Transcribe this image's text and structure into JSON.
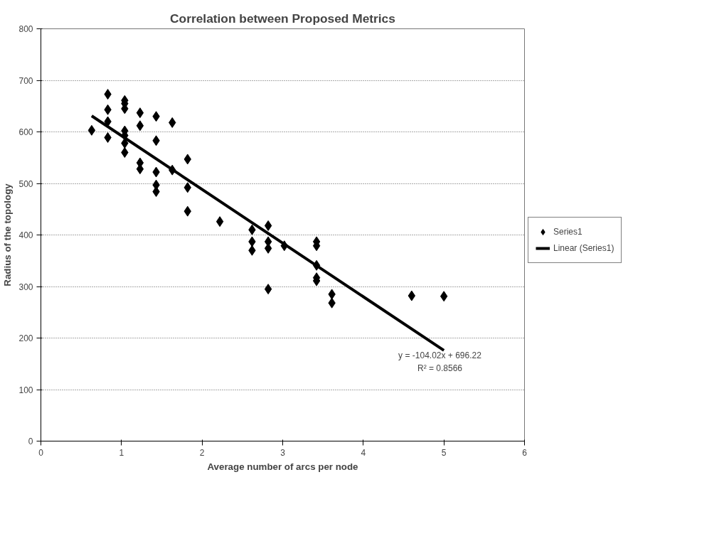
{
  "chart_data": {
    "type": "scatter",
    "title": "Correlation between Proposed Metrics",
    "xlabel": "Average number of arcs per node",
    "ylabel": "Radius of the topology",
    "xlim": [
      0,
      6
    ],
    "ylim": [
      0,
      800
    ],
    "xticks": [
      0,
      1,
      2,
      3,
      4,
      5,
      6
    ],
    "yticks": [
      0,
      100,
      200,
      300,
      400,
      500,
      600,
      700,
      800
    ],
    "grid": "y",
    "legend": "right",
    "series": [
      {
        "name": "Series1",
        "color": "#000000",
        "marker": "diamond",
        "x": [
          0.63,
          0.83,
          0.83,
          0.83,
          0.83,
          1.04,
          1.04,
          1.04,
          1.04,
          1.04,
          1.04,
          1.04,
          1.23,
          1.23,
          1.23,
          1.23,
          1.43,
          1.43,
          1.43,
          1.43,
          1.43,
          1.63,
          1.63,
          1.82,
          1.82,
          1.82,
          2.22,
          2.62,
          2.62,
          2.62,
          2.82,
          2.82,
          2.82,
          2.82,
          3.02,
          3.42,
          3.42,
          3.42,
          3.42,
          3.42,
          3.61,
          3.61,
          4.6,
          5.0
        ],
        "values": [
          603,
          673,
          643,
          620,
          589,
          661,
          655,
          645,
          602,
          593,
          578,
          560,
          637,
          612,
          540,
          528,
          630,
          583,
          522,
          497,
          484,
          618,
          526,
          547,
          492,
          446,
          426,
          410,
          387,
          370,
          418,
          387,
          374,
          295,
          379,
          387,
          379,
          341,
          317,
          311,
          285,
          268,
          282,
          281
        ]
      },
      {
        "name": "Linear (Series1)",
        "color": "#000000",
        "type": "line",
        "x": [
          0.63,
          5.0
        ],
        "values": [
          631,
          176
        ]
      }
    ],
    "annotations": [
      "y = -104.02x + 696.22",
      "R² = 0.8566"
    ]
  }
}
